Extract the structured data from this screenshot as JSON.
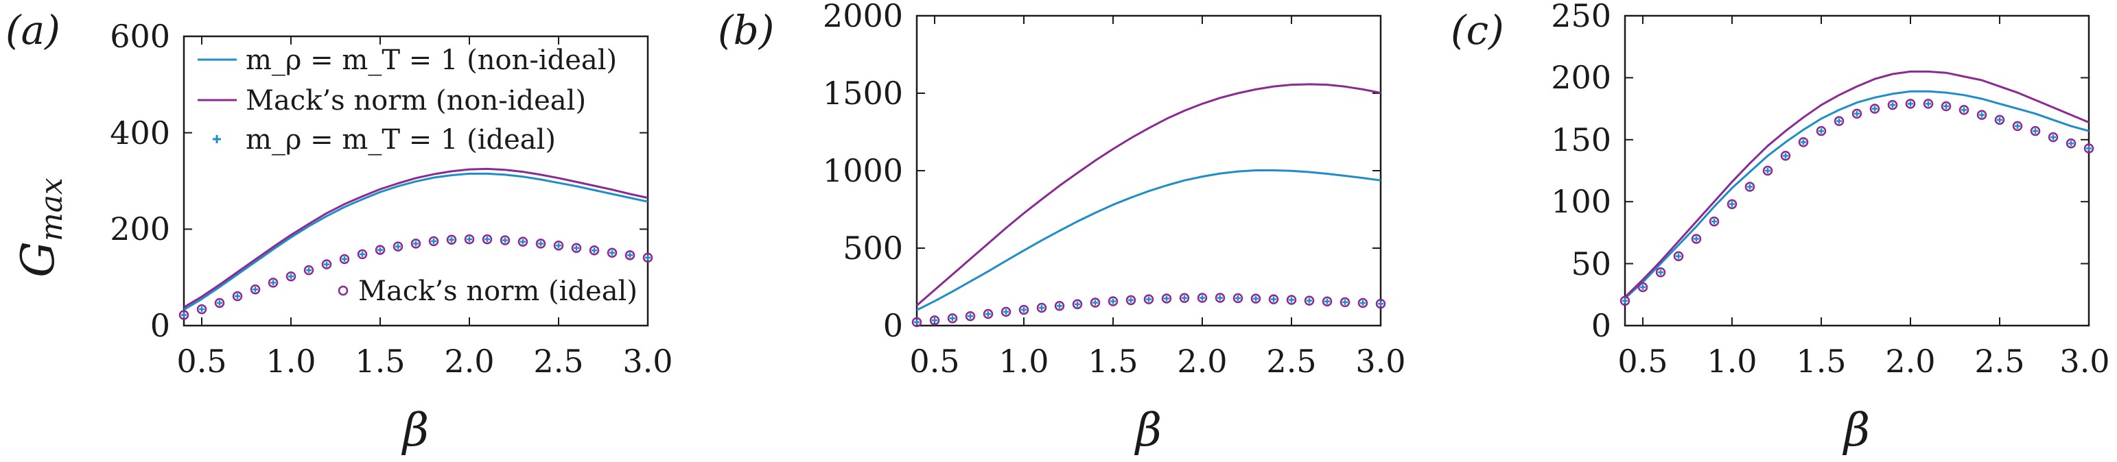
{
  "chart_data": [
    {
      "type": "line",
      "panel_label": "(a)",
      "xlabel": "β",
      "ylabel": "G_max",
      "xlim": [
        0.4,
        3.0
      ],
      "ylim": [
        0,
        600
      ],
      "xticks": [
        "0.5",
        "1.0",
        "1.5",
        "2.0",
        "2.5",
        "3.0"
      ],
      "yticks": [
        "0",
        "200",
        "400",
        "600"
      ],
      "x": [
        0.4,
        0.5,
        0.6,
        0.7,
        0.8,
        0.9,
        1.0,
        1.1,
        1.2,
        1.3,
        1.4,
        1.5,
        1.6,
        1.7,
        1.8,
        1.9,
        2.0,
        2.1,
        2.2,
        2.3,
        2.4,
        2.5,
        2.6,
        2.7,
        2.8,
        2.9,
        3.0
      ],
      "series": [
        {
          "name": "m_ρ = m_T = 1 (non-ideal)",
          "style": "line",
          "color": "#1f8dc8",
          "values": [
            33,
            55,
            80,
            106,
            132,
            158,
            183,
            206,
            227,
            246,
            262,
            277,
            289,
            299,
            307,
            312,
            315,
            315,
            313,
            309,
            303,
            296,
            289,
            281,
            273,
            265,
            257
          ]
        },
        {
          "name": "Mack’s norm (non-ideal)",
          "style": "line",
          "color": "#8b2a93",
          "values": [
            38,
            60,
            85,
            111,
            137,
            163,
            188,
            211,
            233,
            252,
            268,
            283,
            295,
            306,
            314,
            320,
            324,
            325,
            323,
            319,
            313,
            306,
            298,
            290,
            282,
            273,
            265
          ]
        },
        {
          "name": "m_ρ = m_T = 1 (ideal)",
          "style": "plus",
          "color": "#1f8dc8",
          "values": [
            22,
            34,
            47,
            61,
            75,
            89,
            102,
            115,
            127,
            138,
            148,
            157,
            164,
            170,
            175,
            178,
            179,
            179,
            177,
            174,
            170,
            166,
            161,
            156,
            151,
            146,
            141
          ]
        },
        {
          "name": "Mack’s norm (ideal)",
          "style": "circle",
          "color": "#8b2a93",
          "values": [
            22,
            34,
            47,
            61,
            75,
            89,
            102,
            115,
            127,
            138,
            148,
            157,
            164,
            170,
            175,
            178,
            179,
            179,
            177,
            174,
            170,
            166,
            161,
            156,
            151,
            146,
            141
          ]
        }
      ],
      "legend": {
        "entries": [
          "m_ρ = m_T = 1 (non-ideal)",
          "Mack’s norm (non-ideal)",
          "m_ρ = m_T = 1 (ideal)",
          "Mack’s norm (ideal)"
        ],
        "placement": "top-left and bottom-right"
      }
    },
    {
      "type": "line",
      "panel_label": "(b)",
      "xlabel": "β",
      "xlim": [
        0.4,
        3.0
      ],
      "ylim": [
        0,
        2000
      ],
      "xticks": [
        "0.5",
        "1.0",
        "1.5",
        "2.0",
        "2.5",
        "3.0"
      ],
      "yticks": [
        "0",
        "500",
        "1000",
        "1500",
        "2000"
      ],
      "x": [
        0.4,
        0.5,
        0.6,
        0.7,
        0.8,
        0.9,
        1.0,
        1.1,
        1.2,
        1.3,
        1.4,
        1.5,
        1.6,
        1.7,
        1.8,
        1.9,
        2.0,
        2.1,
        2.2,
        2.3,
        2.4,
        2.5,
        2.6,
        2.7,
        2.8,
        2.9,
        3.0
      ],
      "series": [
        {
          "name": "m_ρ = m_T = 1 (non-ideal)",
          "style": "line",
          "color": "#1f8dc8",
          "values": [
            100,
            158,
            220,
            285,
            350,
            418,
            485,
            550,
            612,
            672,
            728,
            780,
            826,
            868,
            905,
            937,
            962,
            982,
            995,
            1002,
            1002,
            999,
            991,
            980,
            967,
            953,
            937
          ]
        },
        {
          "name": "Mack’s norm (non-ideal)",
          "style": "line",
          "color": "#8b2a93",
          "values": [
            130,
            230,
            330,
            430,
            530,
            630,
            725,
            815,
            903,
            985,
            1065,
            1140,
            1210,
            1275,
            1335,
            1387,
            1432,
            1470,
            1500,
            1525,
            1544,
            1555,
            1558,
            1555,
            1543,
            1525,
            1502
          ]
        },
        {
          "name": "m_ρ = m_T = 1 (ideal)",
          "style": "plus",
          "color": "#1f8dc8",
          "values": [
            22,
            34,
            47,
            61,
            75,
            89,
            102,
            115,
            127,
            138,
            148,
            157,
            164,
            170,
            175,
            178,
            179,
            179,
            177,
            174,
            170,
            166,
            161,
            156,
            151,
            146,
            141
          ]
        },
        {
          "name": "Mack’s norm (ideal)",
          "style": "circle",
          "color": "#8b2a93",
          "values": [
            22,
            34,
            47,
            61,
            75,
            89,
            102,
            115,
            127,
            138,
            148,
            157,
            164,
            170,
            175,
            178,
            179,
            179,
            177,
            174,
            170,
            166,
            161,
            156,
            151,
            146,
            141
          ]
        }
      ]
    },
    {
      "type": "line",
      "panel_label": "(c)",
      "xlabel": "β",
      "xlim": [
        0.4,
        3.0
      ],
      "ylim": [
        0,
        250
      ],
      "xticks": [
        "0.5",
        "1.0",
        "1.5",
        "2.0",
        "2.5",
        "3.0"
      ],
      "yticks": [
        "0",
        "50",
        "100",
        "150",
        "200",
        "250"
      ],
      "x": [
        0.4,
        0.5,
        0.6,
        0.7,
        0.8,
        0.9,
        1.0,
        1.1,
        1.2,
        1.3,
        1.4,
        1.5,
        1.6,
        1.7,
        1.8,
        1.9,
        2.0,
        2.1,
        2.2,
        2.3,
        2.4,
        2.5,
        2.6,
        2.7,
        2.8,
        2.9,
        3.0
      ],
      "series": [
        {
          "name": "m_ρ = m_T = 1 (non-ideal)",
          "style": "line",
          "color": "#1f8dc8",
          "values": [
            22,
            35,
            50,
            65,
            80,
            96,
            111,
            124,
            137,
            148,
            158,
            167,
            174,
            180,
            184,
            187,
            189,
            189,
            188,
            186,
            183,
            179,
            175,
            171,
            166,
            161,
            157
          ]
        },
        {
          "name": "Mack’s norm (non-ideal)",
          "style": "line",
          "color": "#8b2a93",
          "values": [
            23,
            37,
            52,
            68,
            84,
            100,
            116,
            131,
            145,
            157,
            168,
            178,
            186,
            193,
            199,
            203,
            205,
            205,
            204,
            201,
            198,
            193,
            188,
            182,
            176,
            170,
            164
          ]
        },
        {
          "name": "m_ρ = m_T = 1 (ideal)",
          "style": "plus",
          "color": "#1f8dc8",
          "values": [
            20,
            31,
            43,
            56,
            70,
            84,
            98,
            112,
            125,
            137,
            148,
            157,
            165,
            171,
            175,
            178,
            179,
            179,
            177,
            174,
            170,
            166,
            161,
            157,
            152,
            147,
            143
          ]
        },
        {
          "name": "Mack’s norm (ideal)",
          "style": "circle",
          "color": "#8b2a93",
          "values": [
            20,
            31,
            43,
            56,
            70,
            84,
            98,
            112,
            125,
            137,
            148,
            157,
            165,
            171,
            175,
            178,
            179,
            179,
            177,
            174,
            170,
            166,
            161,
            157,
            152,
            147,
            143
          ]
        }
      ]
    }
  ]
}
